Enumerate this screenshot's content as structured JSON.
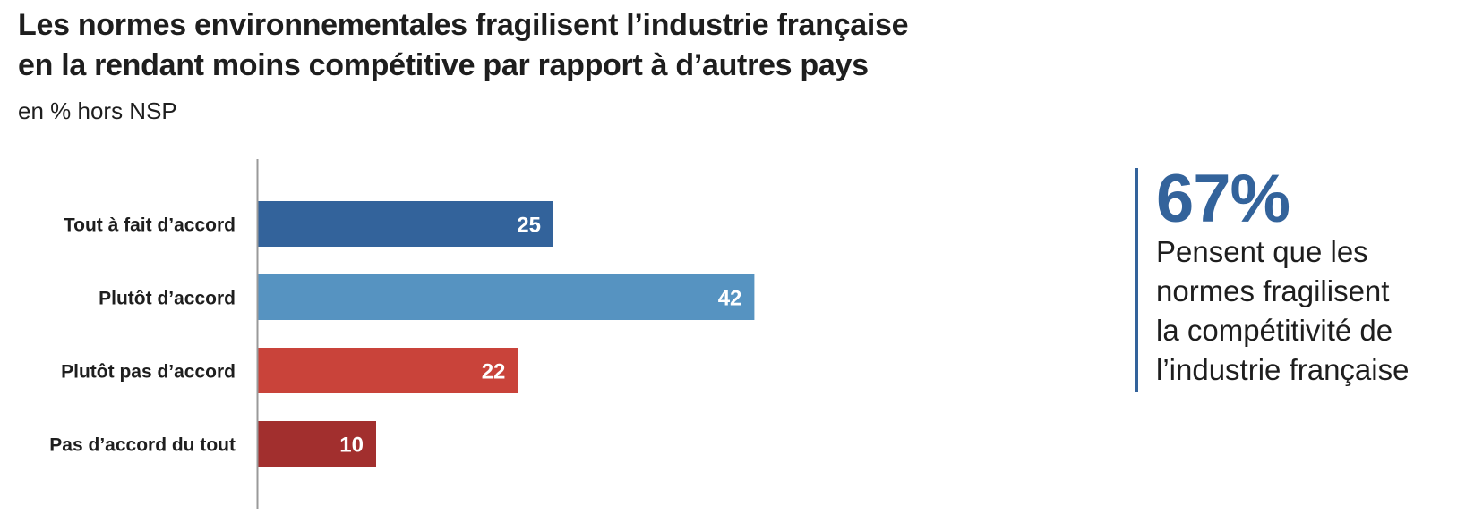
{
  "header": {
    "title_line1": "Les normes environnementales fragilisent l’industrie française",
    "title_line2": "en la rendant moins compétitive par rapport à d’autres pays",
    "subtitle": "en % hors NSP"
  },
  "callout": {
    "value": "67%",
    "text": "Pensent que les\nnormes fragilisent\nla compétitivité de\nl’industrie française",
    "color": "#33639b"
  },
  "chart_data": {
    "type": "bar",
    "orientation": "horizontal",
    "title": "Les normes environnementales fragilisent l’industrie française en la rendant moins compétitive par rapport à d’autres pays",
    "subtitle": "en % hors NSP",
    "xlabel": "",
    "ylabel": "",
    "categories": [
      "Tout à fait d’accord",
      "Plutôt d’accord",
      "Plutôt pas d’accord",
      "Pas d’accord du tout"
    ],
    "values": [
      25,
      42,
      22,
      10
    ],
    "colors": [
      "#33639b",
      "#5693c1",
      "#c9433a",
      "#a22f2e"
    ],
    "xlim": [
      0,
      100
    ],
    "grid": false,
    "legend": "none",
    "data_labels": true
  }
}
